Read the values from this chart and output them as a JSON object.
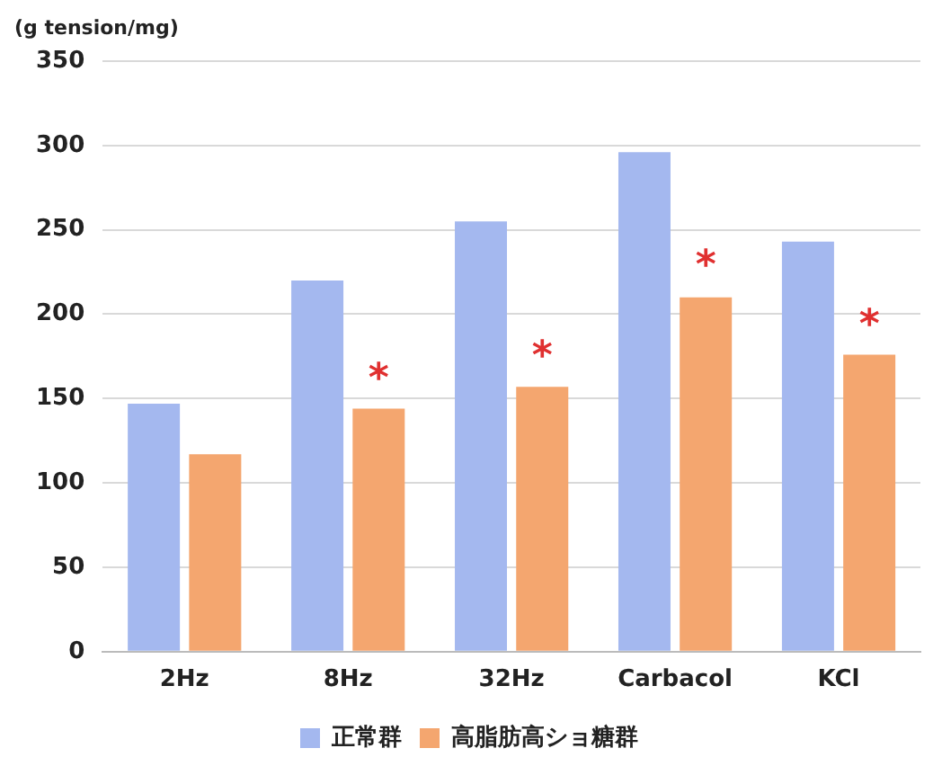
{
  "chart_data": {
    "type": "bar",
    "ylabel": "(g tension/mg)",
    "categories": [
      "2Hz",
      "8Hz",
      "32Hz",
      "Carbacol",
      "KCl"
    ],
    "series": [
      {
        "name": "正常群",
        "color": "#a4b8ef",
        "values": [
          147,
          220,
          255,
          296,
          243
        ]
      },
      {
        "name": "高脂肪高ショ糖群",
        "color": "#f4a66f",
        "values": [
          117,
          144,
          157,
          210,
          176
        ]
      }
    ],
    "ylim": [
      0,
      350
    ],
    "yticks": [
      0,
      50,
      100,
      150,
      200,
      250,
      300,
      350
    ],
    "grid": "y",
    "legend": "bottom",
    "annotations": [
      {
        "text": "*",
        "x": "8Hz",
        "y": 165
      },
      {
        "text": "*",
        "x": "32Hz",
        "y": 178
      },
      {
        "text": "*",
        "x": "Carbacol",
        "y": 232
      },
      {
        "text": "*",
        "x": "KCl",
        "y": 197
      }
    ]
  }
}
